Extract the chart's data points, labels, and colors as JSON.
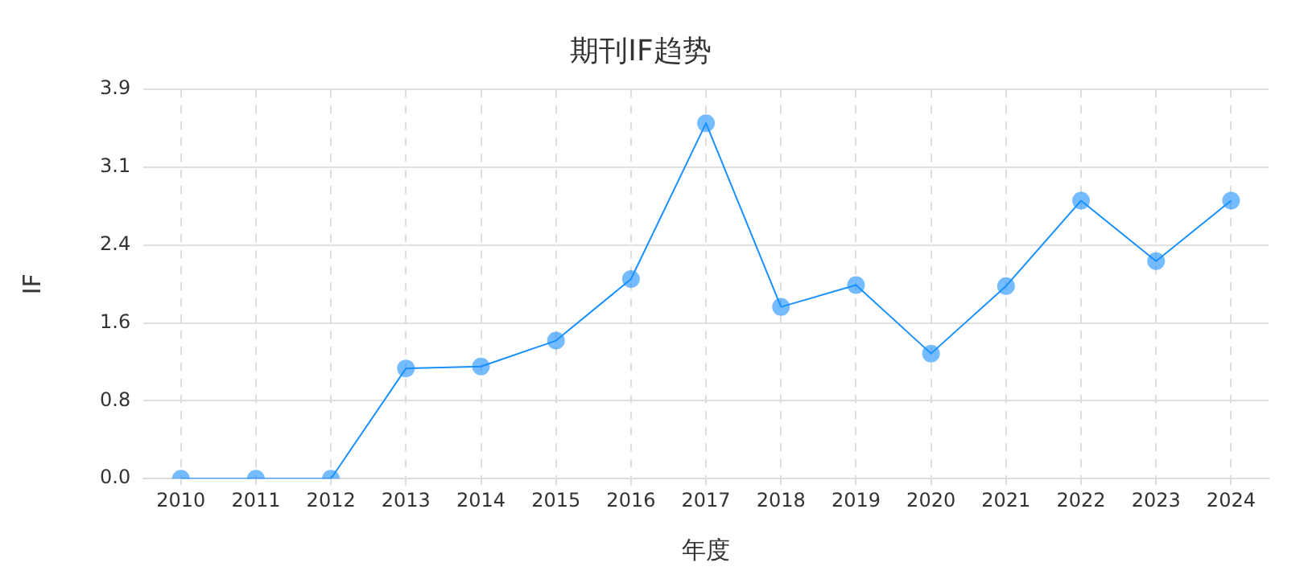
{
  "chart_data": {
    "type": "line",
    "title": "期刊IF趋势",
    "xlabel": "年度",
    "ylabel": "IF",
    "categories": [
      "2010",
      "2011",
      "2012",
      "2013",
      "2014",
      "2015",
      "2016",
      "2017",
      "2018",
      "2019",
      "2020",
      "2021",
      "2022",
      "2023",
      "2024"
    ],
    "series": [
      {
        "color": "#1890ff",
        "values": [
          0,
          0,
          0,
          1.11,
          1.13,
          1.39,
          2.01,
          3.58,
          1.73,
          1.95,
          1.26,
          1.94,
          2.8,
          2.19,
          2.8
        ]
      }
    ],
    "ylim": [
      0,
      3.92
    ],
    "yticks": [
      {
        "value": 0,
        "label": "0.0"
      },
      {
        "value": 0.784,
        "label": "0.8"
      },
      {
        "value": 1.568,
        "label": "1.6"
      },
      {
        "value": 2.352,
        "label": "2.4"
      },
      {
        "value": 3.136,
        "label": "3.1"
      },
      {
        "value": 3.92,
        "label": "3.9"
      }
    ],
    "grid": true,
    "legend": false,
    "marker": "circle",
    "line_style": "solid"
  }
}
